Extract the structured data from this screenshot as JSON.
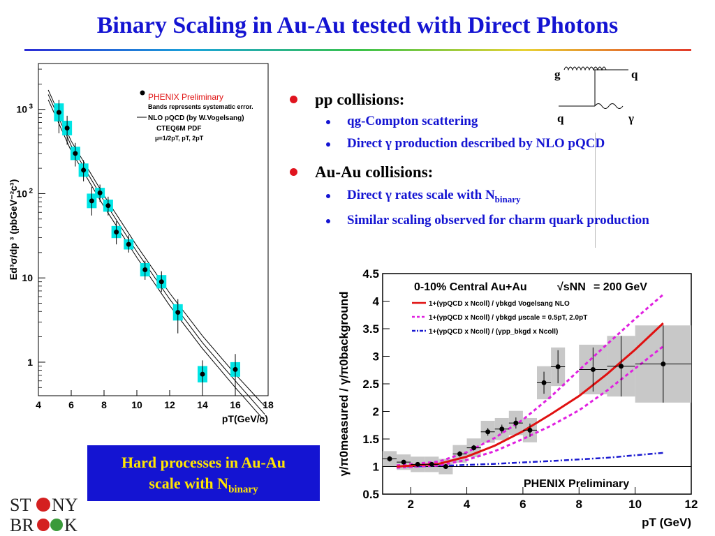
{
  "title": "Binary Scaling in Au-Au tested with Direct Photons",
  "colors": {
    "title": "#1414d2",
    "bullet_red": "#e0141e",
    "box_bg": "#1414d2",
    "box_text": "#ffe600",
    "band_cyan": "#00e5e5",
    "band_gray": "#c8c8c8",
    "curve_red": "#e01010",
    "curve_magenta": "#e020e0",
    "curve_blue": "#1a1ad0"
  },
  "feynman": {
    "g": "g",
    "q_out": "q",
    "q_in": "q",
    "gamma": "γ"
  },
  "bullets": {
    "pp": {
      "label": "pp collisions:",
      "subs": [
        "qg-Compton scattering",
        "Direct γ production described by NLO pQCD"
      ]
    },
    "auau": {
      "label": "Au-Au collisions:",
      "sub1_main": "Direct γ rates scale with N",
      "sub1_sub": "binary",
      "sub2": "Similar scaling observed for charm quark production"
    }
  },
  "box": {
    "line1": "Hard processes in Au-Au",
    "line2_main": "scale with N",
    "line2_sub": "binary"
  },
  "logo": {
    "top": "ST NY",
    "bottom": "BR  K"
  },
  "chart_data": [
    {
      "type": "scatter",
      "log_y": true,
      "xlim": [
        4,
        18
      ],
      "ylim": [
        0.4,
        3500
      ],
      "xticks": [
        "4",
        "6",
        "8",
        "10",
        "12",
        "14",
        "16",
        "18"
      ],
      "yticks": [
        {
          "v": 1,
          "label": "1"
        },
        {
          "v": 10,
          "label": "10"
        },
        {
          "v": 100,
          "label": "10",
          "sup": "2"
        },
        {
          "v": 1000,
          "label": "10",
          "sup": "3"
        }
      ],
      "ylabel": "Ed³σ/dp ³ (pbGeV⁻²c³)",
      "xlabel": "pT(GeV/c)",
      "legend": {
        "title": "PHENIX Preliminary",
        "note": "Bands represents systematic error.",
        "curve": "NLO pQCD (by W.Vogelsang)",
        "pdf": "CTEQ6M PDF",
        "scales": "μ=1/2pT, pT, 2pT"
      },
      "points": [
        {
          "x": 5.25,
          "y": 920,
          "lo": 520,
          "hi": 1300,
          "band": 0.28
        },
        {
          "x": 5.75,
          "y": 600,
          "lo": 380,
          "hi": 840,
          "band": 0.22
        },
        {
          "x": 6.25,
          "y": 300,
          "lo": 210,
          "hi": 400,
          "band": 0.2
        },
        {
          "x": 6.75,
          "y": 190,
          "lo": 140,
          "hi": 250,
          "band": 0.2
        },
        {
          "x": 7.25,
          "y": 82,
          "lo": 55,
          "hi": 120,
          "band": 0.22
        },
        {
          "x": 7.75,
          "y": 102,
          "lo": 80,
          "hi": 128,
          "band": 0.15
        },
        {
          "x": 8.25,
          "y": 72,
          "lo": 55,
          "hi": 92,
          "band": 0.18
        },
        {
          "x": 8.75,
          "y": 35,
          "lo": 25,
          "hi": 47,
          "band": 0.18
        },
        {
          "x": 9.5,
          "y": 25,
          "lo": 20,
          "hi": 32,
          "band": 0.15
        },
        {
          "x": 10.5,
          "y": 12.5,
          "lo": 9.5,
          "hi": 16,
          "band": 0.2
        },
        {
          "x": 11.5,
          "y": 9,
          "lo": 6.8,
          "hi": 12,
          "band": 0.2
        },
        {
          "x": 12.5,
          "y": 3.9,
          "lo": 2.2,
          "hi": 5.6,
          "band": 0.25
        },
        {
          "x": 14,
          "y": 0.72,
          "lo": 0.42,
          "hi": 1.05,
          "band": 0.25
        },
        {
          "x": 16,
          "y": 0.82,
          "lo": 0.46,
          "hi": 1.25,
          "band": 0.22
        }
      ],
      "nlo_curves": [
        {
          "x": [
            4.6,
            6,
            8,
            10,
            12,
            14,
            16,
            17.8
          ],
          "y": [
            1700,
            420,
            95,
            24,
            6.6,
            2.05,
            0.72,
            0.3
          ]
        },
        {
          "x": [
            4.6,
            6,
            8,
            10,
            12,
            14,
            16,
            17.8
          ],
          "y": [
            1500,
            370,
            82,
            20.5,
            5.6,
            1.7,
            0.6,
            0.24
          ]
        },
        {
          "x": [
            4.6,
            6,
            8,
            10,
            12,
            14,
            16,
            17.8
          ],
          "y": [
            1300,
            320,
            70,
            17.5,
            4.7,
            1.45,
            0.5,
            0.2
          ]
        }
      ]
    },
    {
      "type": "scatter",
      "xlim": [
        1,
        12
      ],
      "ylim": [
        0.5,
        4.5
      ],
      "xticks": [
        "2",
        "4",
        "6",
        "8",
        "10",
        "12"
      ],
      "yticks": [
        "0.5",
        "1",
        "1.5",
        "2",
        "2.5",
        "3",
        "3.5",
        "4",
        "4.5"
      ],
      "xlabel": "pT (GeV)",
      "ylabel": "γ/π0measured / γ/π0background",
      "header": {
        "centrality": "0-10% Central  Au+Au",
        "energy_label": "√sNN",
        "energy_value": "= 200 GeV"
      },
      "legend": [
        {
          "text": "1+(γpQCD x Ncoll) / γbkgd  Vogelsang NLO",
          "style": "solid-red"
        },
        {
          "text": "1+(γpQCD x Ncoll) / γbkgd  μscale = 0.5pT, 2.0pT",
          "style": "dashed-magenta"
        },
        {
          "text": "1+(γpQCD x Ncoll) / (γpp_bkgd x Ncoll)",
          "style": "dashdot-blue"
        }
      ],
      "annotation": "PHENIX Preliminary",
      "points": [
        {
          "x": 1.25,
          "y": 1.14,
          "err": 0.05,
          "xerr": 0.25,
          "band": 0.14
        },
        {
          "x": 1.75,
          "y": 1.08,
          "err": 0.04,
          "xerr": 0.25,
          "band": 0.14
        },
        {
          "x": 2.25,
          "y": 1.04,
          "err": 0.04,
          "xerr": 0.25,
          "band": 0.14
        },
        {
          "x": 2.75,
          "y": 1.04,
          "err": 0.04,
          "xerr": 0.25,
          "band": 0.14
        },
        {
          "x": 3.25,
          "y": 1.0,
          "err": 0.04,
          "xerr": 0.25,
          "band": 0.14
        },
        {
          "x": 3.75,
          "y": 1.23,
          "err": 0.05,
          "xerr": 0.25,
          "band": 0.16
        },
        {
          "x": 4.25,
          "y": 1.34,
          "err": 0.05,
          "xerr": 0.25,
          "band": 0.17
        },
        {
          "x": 4.75,
          "y": 1.63,
          "err": 0.07,
          "xerr": 0.25,
          "band": 0.2
        },
        {
          "x": 5.25,
          "y": 1.68,
          "err": 0.08,
          "xerr": 0.25,
          "band": 0.2
        },
        {
          "x": 5.75,
          "y": 1.79,
          "err": 0.1,
          "xerr": 0.25,
          "band": 0.22
        },
        {
          "x": 6.25,
          "y": 1.66,
          "err": 0.12,
          "xerr": 0.25,
          "band": 0.22
        },
        {
          "x": 6.75,
          "y": 2.52,
          "err": 0.2,
          "xerr": 0.25,
          "band": 0.3
        },
        {
          "x": 7.25,
          "y": 2.81,
          "err": 0.3,
          "xerr": 0.25,
          "band": 0.35
        },
        {
          "x": 8.5,
          "y": 2.76,
          "err": 0.4,
          "xerr": 0.5,
          "band": 0.45
        },
        {
          "x": 9.5,
          "y": 2.82,
          "err": 0.55,
          "xerr": 0.5,
          "band": 0.55
        },
        {
          "x": 11.0,
          "y": 2.86,
          "err": 0.7,
          "xerr": 1.0,
          "band": 0.7
        }
      ],
      "curves": {
        "nlo": {
          "x": [
            1.5,
            3,
            4,
            5,
            6,
            7,
            8,
            9,
            10,
            11
          ],
          "y": [
            1.0,
            1.05,
            1.18,
            1.38,
            1.64,
            1.95,
            2.28,
            2.68,
            3.12,
            3.6
          ]
        },
        "mu_upper": {
          "x": [
            1.5,
            3,
            4,
            5,
            6,
            7,
            8,
            9,
            10,
            11
          ],
          "y": [
            1.02,
            1.09,
            1.26,
            1.52,
            1.85,
            2.27,
            2.75,
            3.22,
            3.68,
            4.12
          ]
        },
        "mu_lower": {
          "x": [
            1.5,
            3,
            4,
            5,
            6,
            7,
            8,
            9,
            10,
            11
          ],
          "y": [
            0.98,
            1.02,
            1.12,
            1.28,
            1.5,
            1.74,
            2.02,
            2.38,
            2.78,
            3.18
          ]
        },
        "pp_bkgd": {
          "x": [
            1.5,
            3,
            5,
            7,
            9,
            11
          ],
          "y": [
            1.0,
            1.01,
            1.05,
            1.1,
            1.16,
            1.25
          ]
        }
      }
    }
  ]
}
